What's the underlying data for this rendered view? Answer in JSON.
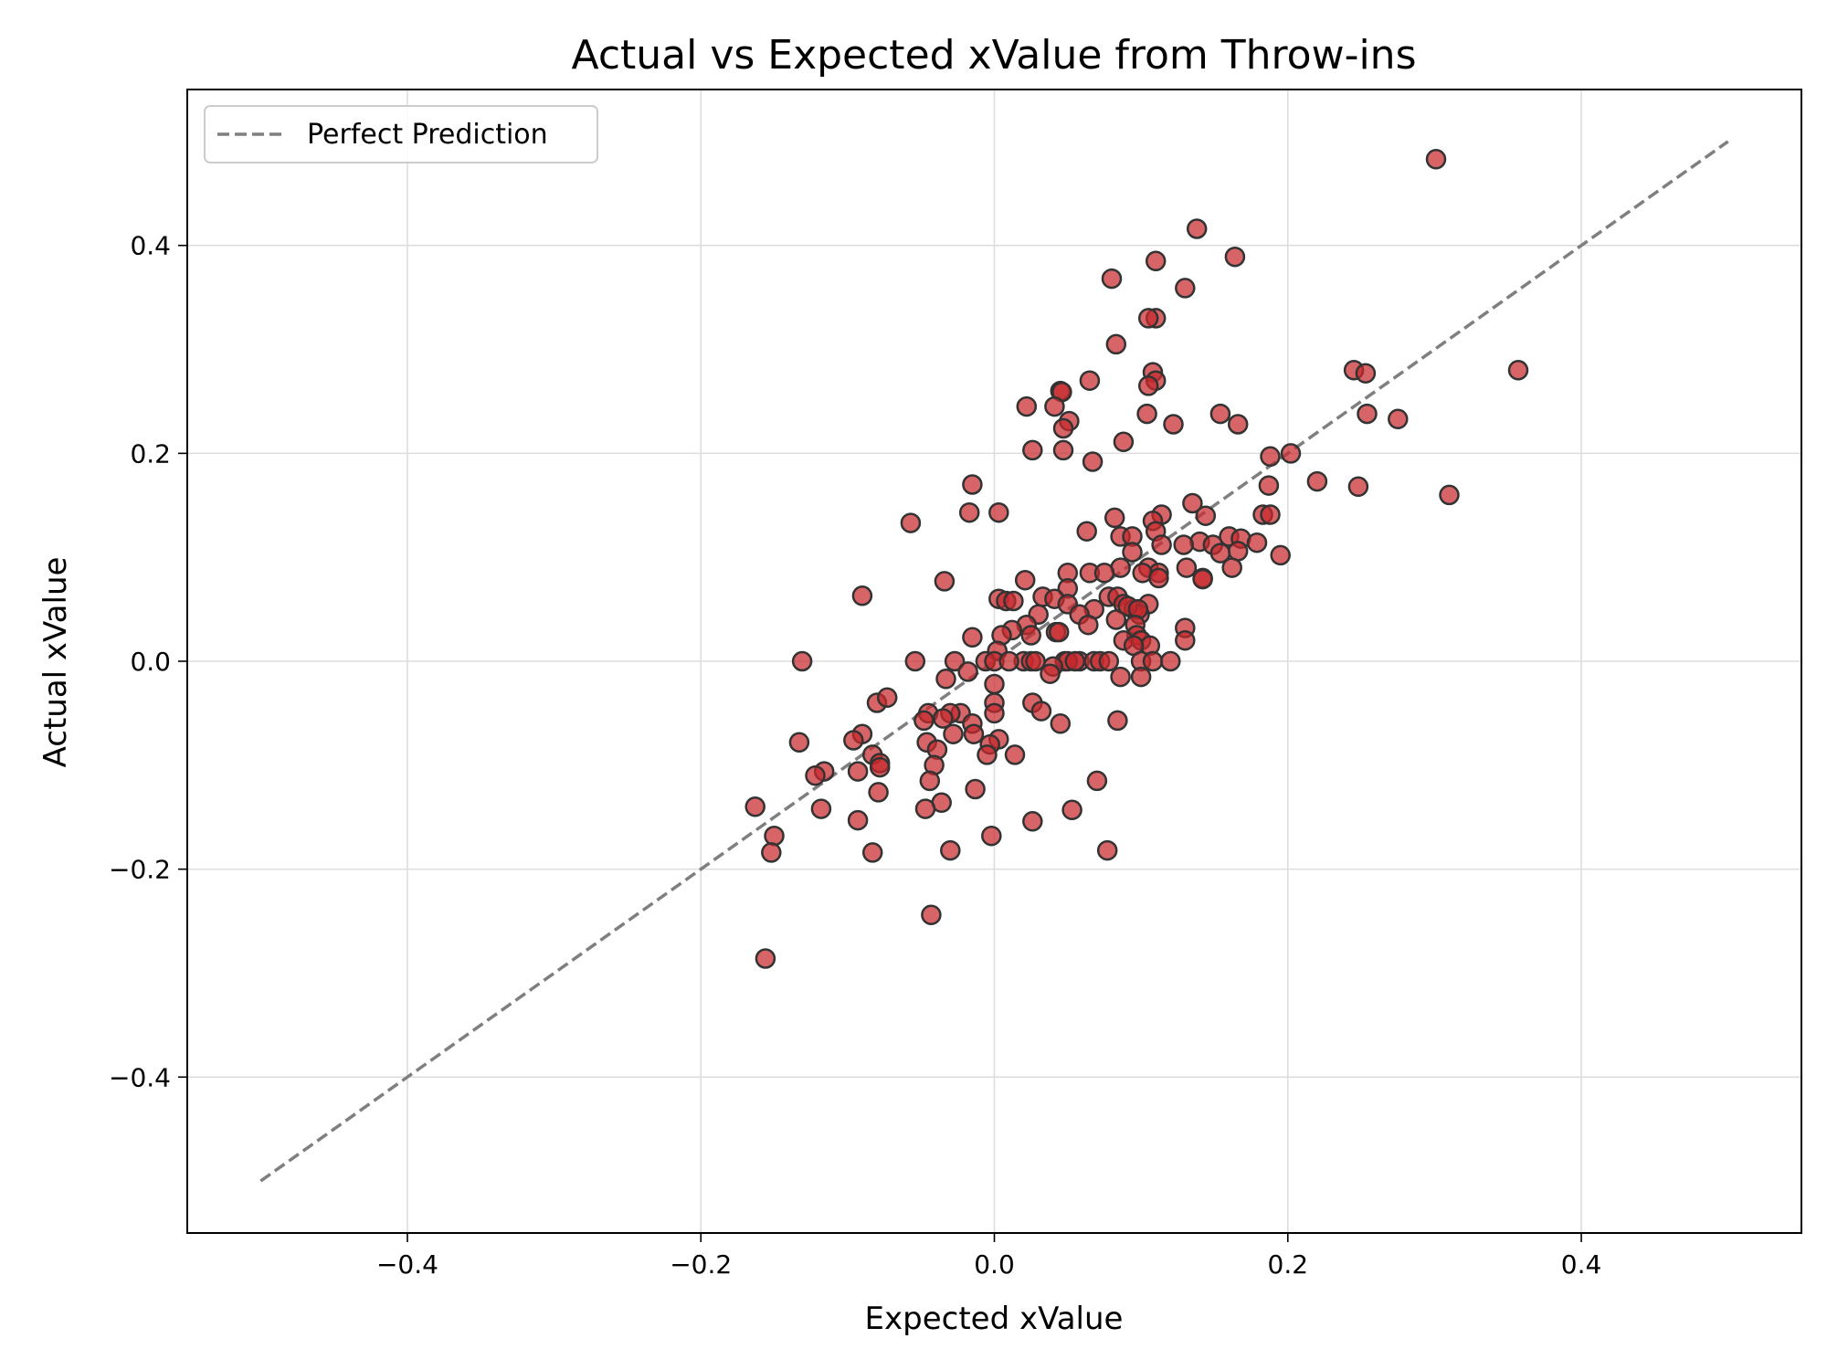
{
  "chart_data": {
    "type": "scatter",
    "title": "Actual vs Expected xValue from Throw-ins",
    "xlabel": "Expected xValue",
    "ylabel": "Actual xValue",
    "xlim": [
      -0.55,
      0.55
    ],
    "ylim": [
      -0.55,
      0.55
    ],
    "xticks": [
      -0.4,
      -0.2,
      0.0,
      0.2,
      0.4
    ],
    "yticks": [
      -0.4,
      -0.2,
      0.0,
      0.2,
      0.4
    ],
    "xtick_labels": [
      "−0.4",
      "−0.2",
      "0.0",
      "0.2",
      "0.4"
    ],
    "ytick_labels": [
      "−0.4",
      "−0.2",
      "0.0",
      "0.2",
      "0.4"
    ],
    "grid": true,
    "legend": {
      "position": "top-left",
      "entries": [
        "Perfect Prediction"
      ]
    },
    "reference_line": {
      "name": "Perfect Prediction",
      "x": [
        -0.5,
        0.5
      ],
      "y": [
        -0.5,
        0.5
      ],
      "color": "#7f7f7f",
      "style": "dashed"
    },
    "marker_color": "#c8282d",
    "marker_edge": "#333333",
    "points": [
      [
        0.301,
        0.483
      ],
      [
        0.357,
        0.28
      ],
      [
        0.31,
        0.16
      ],
      [
        0.138,
        0.416
      ],
      [
        0.164,
        0.389
      ],
      [
        0.11,
        0.385
      ],
      [
        0.08,
        0.368
      ],
      [
        0.13,
        0.359
      ],
      [
        0.11,
        0.33
      ],
      [
        0.105,
        0.33
      ],
      [
        0.083,
        0.305
      ],
      [
        0.108,
        0.278
      ],
      [
        0.11,
        0.27
      ],
      [
        0.065,
        0.27
      ],
      [
        0.105,
        0.265
      ],
      [
        0.045,
        0.26
      ],
      [
        0.046,
        0.259
      ],
      [
        0.041,
        0.245
      ],
      [
        0.022,
        0.245
      ],
      [
        0.245,
        0.28
      ],
      [
        0.253,
        0.277
      ],
      [
        0.154,
        0.238
      ],
      [
        0.104,
        0.238
      ],
      [
        0.254,
        0.238
      ],
      [
        0.275,
        0.233
      ],
      [
        0.051,
        0.231
      ],
      [
        0.166,
        0.228
      ],
      [
        0.122,
        0.228
      ],
      [
        0.047,
        0.224
      ],
      [
        0.088,
        0.211
      ],
      [
        0.026,
        0.203
      ],
      [
        0.047,
        0.203
      ],
      [
        0.202,
        0.2
      ],
      [
        0.188,
        0.197
      ],
      [
        0.067,
        0.192
      ],
      [
        0.22,
        0.173
      ],
      [
        0.248,
        0.168
      ],
      [
        0.187,
        0.169
      ],
      [
        -0.015,
        0.17
      ],
      [
        -0.057,
        0.133
      ],
      [
        0.003,
        0.143
      ],
      [
        -0.017,
        0.143
      ],
      [
        0.135,
        0.152
      ],
      [
        0.144,
        0.14
      ],
      [
        0.114,
        0.141
      ],
      [
        0.082,
        0.138
      ],
      [
        0.108,
        0.135
      ],
      [
        0.183,
        0.141
      ],
      [
        0.188,
        0.141
      ],
      [
        0.063,
        0.125
      ],
      [
        0.086,
        0.12
      ],
      [
        0.094,
        0.12
      ],
      [
        0.11,
        0.125
      ],
      [
        0.16,
        0.12
      ],
      [
        0.168,
        0.118
      ],
      [
        0.14,
        0.115
      ],
      [
        0.179,
        0.114
      ],
      [
        0.114,
        0.112
      ],
      [
        0.129,
        0.112
      ],
      [
        0.149,
        0.112
      ],
      [
        0.166,
        0.106
      ],
      [
        0.094,
        0.105
      ],
      [
        0.154,
        0.104
      ],
      [
        0.195,
        0.102
      ],
      [
        0.162,
        0.09
      ],
      [
        0.131,
        0.09
      ],
      [
        0.105,
        0.09
      ],
      [
        0.112,
        0.085
      ],
      [
        0.101,
        0.085
      ],
      [
        0.086,
        0.09
      ],
      [
        0.05,
        0.085
      ],
      [
        0.065,
        0.085
      ],
      [
        0.075,
        0.085
      ],
      [
        0.142,
        0.08
      ],
      [
        0.142,
        0.079
      ],
      [
        0.112,
        0.08
      ],
      [
        0.05,
        0.07
      ],
      [
        -0.034,
        0.077
      ],
      [
        0.021,
        0.078
      ],
      [
        -0.09,
        0.063
      ],
      [
        0.003,
        0.06
      ],
      [
        0.008,
        0.058
      ],
      [
        0.013,
        0.058
      ],
      [
        0.033,
        0.062
      ],
      [
        0.041,
        0.06
      ],
      [
        0.05,
        0.055
      ],
      [
        0.078,
        0.062
      ],
      [
        0.084,
        0.062
      ],
      [
        0.088,
        0.055
      ],
      [
        0.095,
        0.05
      ],
      [
        0.105,
        0.055
      ],
      [
        0.099,
        0.045
      ],
      [
        0.091,
        0.053
      ],
      [
        0.098,
        0.05
      ],
      [
        0.03,
        0.045
      ],
      [
        0.068,
        0.05
      ],
      [
        0.058,
        0.045
      ],
      [
        0.083,
        0.04
      ],
      [
        0.096,
        0.035
      ],
      [
        0.064,
        0.035
      ],
      [
        0.022,
        0.035
      ],
      [
        0.012,
        0.03
      ],
      [
        0.042,
        0.028
      ],
      [
        0.044,
        0.028
      ],
      [
        0.005,
        0.025
      ],
      [
        0.097,
        0.025
      ],
      [
        0.13,
        0.032
      ],
      [
        0.13,
        0.02
      ],
      [
        0.025,
        0.025
      ],
      [
        0.088,
        0.02
      ],
      [
        0.1,
        0.02
      ],
      [
        0.106,
        0.015
      ],
      [
        0.095,
        0.015
      ],
      [
        -0.015,
        0.023
      ],
      [
        0.002,
        0.01
      ],
      [
        0.02,
        0.0
      ],
      [
        0.025,
        0.0
      ],
      [
        0.028,
        0.0
      ],
      [
        0.048,
        0.0
      ],
      [
        0.058,
        0.0
      ],
      [
        0.05,
        0.0
      ],
      [
        0.068,
        0.0
      ],
      [
        0.072,
        0.0
      ],
      [
        0.078,
        0.0
      ],
      [
        0.1,
        0.0
      ],
      [
        0.108,
        0.0
      ],
      [
        0.12,
        0.0
      ],
      [
        0.055,
        0.0
      ],
      [
        -0.054,
        0.0
      ],
      [
        -0.027,
        0.0
      ],
      [
        -0.006,
        0.0
      ],
      [
        -0.131,
        0.0
      ],
      [
        0.0,
        0.0
      ],
      [
        0.01,
        -0.0
      ],
      [
        0.04,
        -0.005
      ],
      [
        0.038,
        -0.012
      ],
      [
        0.086,
        -0.015
      ],
      [
        0.1,
        -0.015
      ],
      [
        -0.033,
        -0.017
      ],
      [
        0.0,
        -0.022
      ],
      [
        -0.018,
        -0.01
      ],
      [
        -0.08,
        -0.04
      ],
      [
        -0.073,
        -0.035
      ],
      [
        0.0,
        -0.04
      ],
      [
        0.026,
        -0.04
      ],
      [
        0.032,
        -0.048
      ],
      [
        0.0,
        -0.05
      ],
      [
        -0.023,
        -0.05
      ],
      [
        -0.045,
        -0.05
      ],
      [
        -0.03,
        -0.05
      ],
      [
        -0.048,
        -0.057
      ],
      [
        -0.015,
        -0.06
      ],
      [
        -0.035,
        -0.055
      ],
      [
        0.045,
        -0.06
      ],
      [
        -0.028,
        -0.07
      ],
      [
        -0.014,
        -0.07
      ],
      [
        -0.133,
        -0.078
      ],
      [
        -0.09,
        -0.07
      ],
      [
        -0.096,
        -0.076
      ],
      [
        -0.046,
        -0.078
      ],
      [
        0.003,
        -0.075
      ],
      [
        -0.003,
        -0.08
      ],
      [
        -0.039,
        -0.085
      ],
      [
        -0.005,
        -0.09
      ],
      [
        0.014,
        -0.09
      ],
      [
        -0.083,
        -0.09
      ],
      [
        -0.078,
        -0.098
      ],
      [
        -0.041,
        -0.1
      ],
      [
        -0.078,
        -0.102
      ],
      [
        -0.116,
        -0.106
      ],
      [
        -0.122,
        -0.11
      ],
      [
        -0.093,
        -0.106
      ],
      [
        -0.044,
        -0.115
      ],
      [
        0.07,
        -0.115
      ],
      [
        -0.013,
        -0.123
      ],
      [
        -0.079,
        -0.126
      ],
      [
        -0.036,
        -0.136
      ],
      [
        -0.163,
        -0.14
      ],
      [
        -0.118,
        -0.142
      ],
      [
        -0.047,
        -0.142
      ],
      [
        0.053,
        -0.143
      ],
      [
        -0.093,
        -0.153
      ],
      [
        0.026,
        -0.154
      ],
      [
        -0.15,
        -0.168
      ],
      [
        -0.002,
        -0.168
      ],
      [
        -0.152,
        -0.184
      ],
      [
        -0.083,
        -0.184
      ],
      [
        -0.03,
        -0.182
      ],
      [
        0.077,
        -0.182
      ],
      [
        -0.043,
        -0.244
      ],
      [
        -0.156,
        -0.286
      ],
      [
        0.084,
        -0.057
      ]
    ]
  }
}
